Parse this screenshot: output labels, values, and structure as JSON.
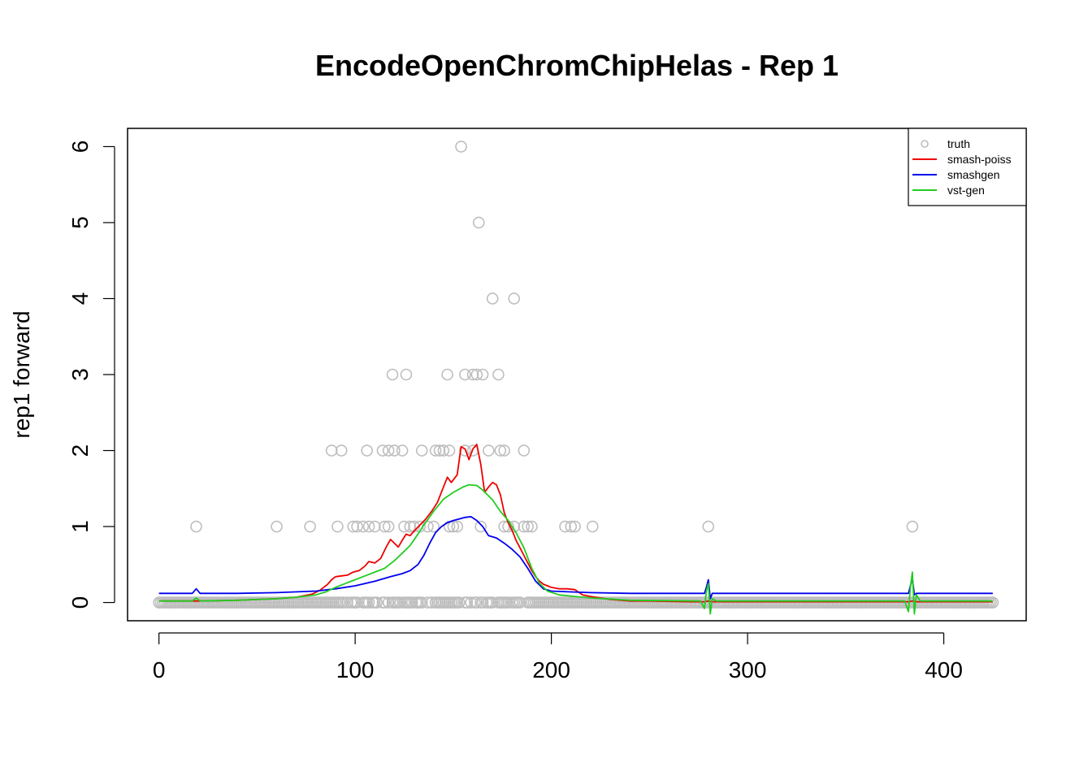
{
  "chart_data": {
    "type": "scatter",
    "title": "EncodeOpenChromChipHelas - Rep 1",
    "xlabel": "",
    "ylabel": "rep1 forward",
    "xlim": [
      -16,
      442
    ],
    "ylim": [
      -0.24,
      6.24
    ],
    "x_ticks": [
      0,
      100,
      200,
      300,
      400
    ],
    "y_ticks": [
      0,
      1,
      2,
      3,
      4,
      5,
      6
    ],
    "grid": false,
    "legend_position": "top-right",
    "colors": {
      "truth": "#bebebe",
      "smash_poiss": "#ee0000",
      "smashgen": "#0000ee",
      "vst_gen": "#22cc22"
    },
    "points": {
      "name": "truth",
      "marker": "open-circle",
      "zero_x_range": [
        0,
        425
      ],
      "nonzero": [
        [
          19,
          1
        ],
        [
          60,
          1
        ],
        [
          77,
          1
        ],
        [
          91,
          1
        ],
        [
          99,
          1
        ],
        [
          101,
          1
        ],
        [
          104,
          1
        ],
        [
          107,
          1
        ],
        [
          110,
          1
        ],
        [
          115,
          1
        ],
        [
          117,
          1
        ],
        [
          125,
          1
        ],
        [
          128,
          1
        ],
        [
          130,
          1
        ],
        [
          133,
          1
        ],
        [
          137,
          1
        ],
        [
          140,
          1
        ],
        [
          148,
          1
        ],
        [
          150,
          1
        ],
        [
          152,
          1
        ],
        [
          164,
          1
        ],
        [
          176,
          1
        ],
        [
          178,
          1
        ],
        [
          181,
          1
        ],
        [
          186,
          1
        ],
        [
          188,
          1
        ],
        [
          190,
          1
        ],
        [
          207,
          1
        ],
        [
          210,
          1
        ],
        [
          212,
          1
        ],
        [
          221,
          1
        ],
        [
          280,
          1
        ],
        [
          384,
          1
        ],
        [
          88,
          2
        ],
        [
          93,
          2
        ],
        [
          106,
          2
        ],
        [
          114,
          2
        ],
        [
          117,
          2
        ],
        [
          120,
          2
        ],
        [
          124,
          2
        ],
        [
          134,
          2
        ],
        [
          141,
          2
        ],
        [
          143,
          2
        ],
        [
          145,
          2
        ],
        [
          148,
          2
        ],
        [
          156,
          2
        ],
        [
          160,
          2
        ],
        [
          168,
          2
        ],
        [
          174,
          2
        ],
        [
          176,
          2
        ],
        [
          186,
          2
        ],
        [
          119,
          3
        ],
        [
          126,
          3
        ],
        [
          147,
          3
        ],
        [
          156,
          3
        ],
        [
          160,
          3
        ],
        [
          162,
          3
        ],
        [
          165,
          3
        ],
        [
          173,
          3
        ],
        [
          170,
          4
        ],
        [
          181,
          4
        ],
        [
          163,
          5
        ],
        [
          154,
          6
        ]
      ],
      "zero_gaps": [
        95,
        97,
        102,
        103,
        108,
        112,
        113,
        116,
        118,
        124,
        130,
        135,
        136,
        138,
        140,
        154,
        155,
        158,
        160,
        163,
        166,
        171,
        172,
        179,
        185,
        186,
        187
      ]
    },
    "series": [
      {
        "name": "smash-poiss",
        "x": [
          0,
          20,
          40,
          60,
          70,
          78,
          82,
          86,
          88,
          90,
          93,
          96,
          99,
          102,
          105,
          107,
          110,
          113,
          116,
          118,
          120,
          122,
          124,
          126,
          128,
          130,
          133,
          136,
          139,
          142,
          145,
          147,
          149,
          152,
          154,
          156,
          158,
          160,
          162,
          164,
          166,
          168,
          170,
          172,
          174,
          176,
          178,
          180,
          182,
          184,
          186,
          188,
          190,
          192,
          194,
          196,
          198,
          200,
          204,
          208,
          212,
          216,
          220,
          230,
          240,
          250,
          270,
          278,
          280,
          282,
          300,
          350,
          382,
          384,
          386,
          400,
          425
        ],
        "values": [
          0.02,
          0.02,
          0.03,
          0.05,
          0.07,
          0.11,
          0.16,
          0.24,
          0.3,
          0.34,
          0.35,
          0.36,
          0.4,
          0.42,
          0.48,
          0.54,
          0.52,
          0.58,
          0.74,
          0.83,
          0.78,
          0.73,
          0.82,
          0.9,
          0.88,
          0.94,
          1.02,
          1.1,
          1.2,
          1.32,
          1.52,
          1.65,
          1.58,
          1.68,
          2.05,
          2.02,
          1.88,
          2.02,
          2.08,
          1.82,
          1.45,
          1.52,
          1.58,
          1.55,
          1.42,
          1.18,
          1.05,
          0.95,
          0.82,
          0.72,
          0.62,
          0.52,
          0.42,
          0.34,
          0.28,
          0.24,
          0.22,
          0.2,
          0.18,
          0.18,
          0.17,
          0.1,
          0.08,
          0.04,
          0.02,
          0.02,
          0.01,
          0.01,
          0.02,
          0.01,
          0.01,
          0.01,
          0.01,
          0.02,
          0.01,
          0.01,
          0.01
        ]
      },
      {
        "name": "smashgen",
        "x": [
          0,
          17,
          19,
          21,
          40,
          60,
          80,
          90,
          100,
          110,
          118,
          124,
          128,
          132,
          135,
          138,
          141,
          144,
          147,
          150,
          153,
          156,
          159,
          162,
          165,
          168,
          172,
          176,
          180,
          184,
          188,
          192,
          196,
          200,
          210,
          220,
          240,
          278,
          279,
          280,
          281,
          282,
          300,
          350,
          382,
          383,
          384,
          385,
          386,
          400,
          425
        ],
        "values": [
          0.12,
          0.12,
          0.18,
          0.12,
          0.12,
          0.13,
          0.15,
          0.18,
          0.22,
          0.28,
          0.34,
          0.38,
          0.42,
          0.5,
          0.62,
          0.78,
          0.92,
          1.0,
          1.05,
          1.08,
          1.1,
          1.12,
          1.13,
          1.08,
          1.0,
          0.88,
          0.85,
          0.78,
          0.7,
          0.6,
          0.45,
          0.28,
          0.18,
          0.15,
          0.14,
          0.13,
          0.12,
          0.12,
          0.2,
          0.3,
          0.05,
          0.12,
          0.12,
          0.12,
          0.12,
          0.22,
          0.32,
          0.1,
          0.12,
          0.12,
          0.12
        ]
      },
      {
        "name": "vst-gen",
        "x": [
          0,
          17,
          19,
          21,
          40,
          60,
          70,
          80,
          85,
          90,
          95,
          100,
          105,
          110,
          115,
          120,
          124,
          128,
          132,
          135,
          140,
          145,
          150,
          155,
          158,
          162,
          165,
          170,
          174,
          178,
          182,
          186,
          190,
          194,
          198,
          204,
          212,
          220,
          240,
          276,
          278,
          279,
          280,
          281,
          282,
          284,
          300,
          350,
          380,
          382,
          383,
          384,
          385,
          386,
          388,
          400,
          425
        ],
        "values": [
          0.02,
          0.02,
          0.06,
          0.02,
          0.03,
          0.05,
          0.07,
          0.1,
          0.14,
          0.2,
          0.25,
          0.3,
          0.35,
          0.4,
          0.45,
          0.55,
          0.65,
          0.75,
          0.9,
          1.02,
          1.2,
          1.36,
          1.45,
          1.52,
          1.55,
          1.54,
          1.48,
          1.35,
          1.2,
          1.08,
          0.92,
          0.72,
          0.45,
          0.25,
          0.15,
          0.1,
          0.08,
          0.06,
          0.03,
          0.02,
          -0.08,
          0.15,
          0.25,
          -0.15,
          0.05,
          0.02,
          0.02,
          0.02,
          0.02,
          -0.12,
          0.2,
          0.4,
          -0.15,
          0.1,
          0.02,
          0.02,
          0.02
        ]
      }
    ]
  }
}
